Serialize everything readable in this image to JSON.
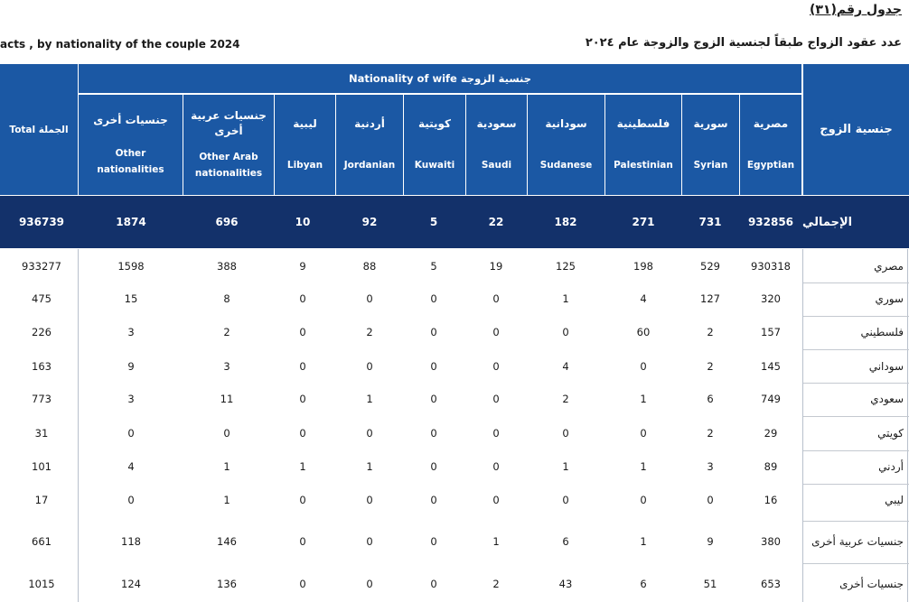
{
  "table_number": "جدول رقم(٣١)",
  "title_en": "acts , by nationality of the couple  2024",
  "title_ar": "عدد عقود الزواج طبقاً لجنسية الزوج والزوجة عام ٢٠٢٤",
  "headers": {
    "husband": "جنسية الزوج",
    "wife_group": "Nationality of wife  جنسية الزوجة",
    "total_ar": "الجملة",
    "total_en": "Total"
  },
  "columns": [
    {
      "ar": "مصرية",
      "en": "Egyptian"
    },
    {
      "ar": "سورية",
      "en": "Syrian"
    },
    {
      "ar": "فلسطينية",
      "en": "Palestinian"
    },
    {
      "ar": "سودانية",
      "en": "Sudanese"
    },
    {
      "ar": "سعودية",
      "en": "Saudi"
    },
    {
      "ar": "كويتية",
      "en": "Kuwaiti"
    },
    {
      "ar": "أردنية",
      "en": "Jordanian"
    },
    {
      "ar": "ليبية",
      "en": "Libyan"
    },
    {
      "ar": "جنسيات عربية أخرى",
      "en": "Other Arab nationalities"
    },
    {
      "ar": "جنسيات أخرى",
      "en": "Other nationalities"
    }
  ],
  "total_row": {
    "label": "الإجمالي",
    "values": [
      "932856",
      "731",
      "271",
      "182",
      "22",
      "5",
      "92",
      "10",
      "696",
      "1874"
    ],
    "total": "936739"
  },
  "rows": [
    {
      "label": "مصري",
      "values": [
        "930318",
        "529",
        "198",
        "125",
        "19",
        "5",
        "88",
        "9",
        "388",
        "1598"
      ],
      "total": "933277"
    },
    {
      "label": "سوري",
      "values": [
        "320",
        "127",
        "4",
        "1",
        "0",
        "0",
        "0",
        "0",
        "8",
        "15"
      ],
      "total": "475"
    },
    {
      "label": "فلسطيني",
      "values": [
        "157",
        "2",
        "60",
        "0",
        "0",
        "0",
        "2",
        "0",
        "2",
        "3"
      ],
      "total": "226"
    },
    {
      "label": "سوداني",
      "values": [
        "145",
        "2",
        "0",
        "4",
        "0",
        "0",
        "0",
        "0",
        "3",
        "9"
      ],
      "total": "163"
    },
    {
      "label": "سعودي",
      "values": [
        "749",
        "6",
        "1",
        "2",
        "0",
        "0",
        "1",
        "0",
        "11",
        "3"
      ],
      "total": "773"
    },
    {
      "label": "كويتي",
      "values": [
        "29",
        "2",
        "0",
        "0",
        "0",
        "0",
        "0",
        "0",
        "0",
        "0"
      ],
      "total": "31"
    },
    {
      "label": "أردني",
      "values": [
        "89",
        "3",
        "1",
        "1",
        "0",
        "0",
        "1",
        "1",
        "1",
        "4"
      ],
      "total": "101"
    },
    {
      "label": "ليبي",
      "values": [
        "16",
        "0",
        "0",
        "0",
        "0",
        "0",
        "0",
        "0",
        "1",
        "0"
      ],
      "total": "17"
    },
    {
      "label": "جنسيات عربية أخرى",
      "values": [
        "380",
        "9",
        "1",
        "6",
        "1",
        "0",
        "0",
        "0",
        "146",
        "118"
      ],
      "total": "661"
    },
    {
      "label": "جنسيات أخرى",
      "values": [
        "653",
        "51",
        "6",
        "43",
        "2",
        "0",
        "0",
        "0",
        "136",
        "124"
      ],
      "total": "1015"
    }
  ]
}
